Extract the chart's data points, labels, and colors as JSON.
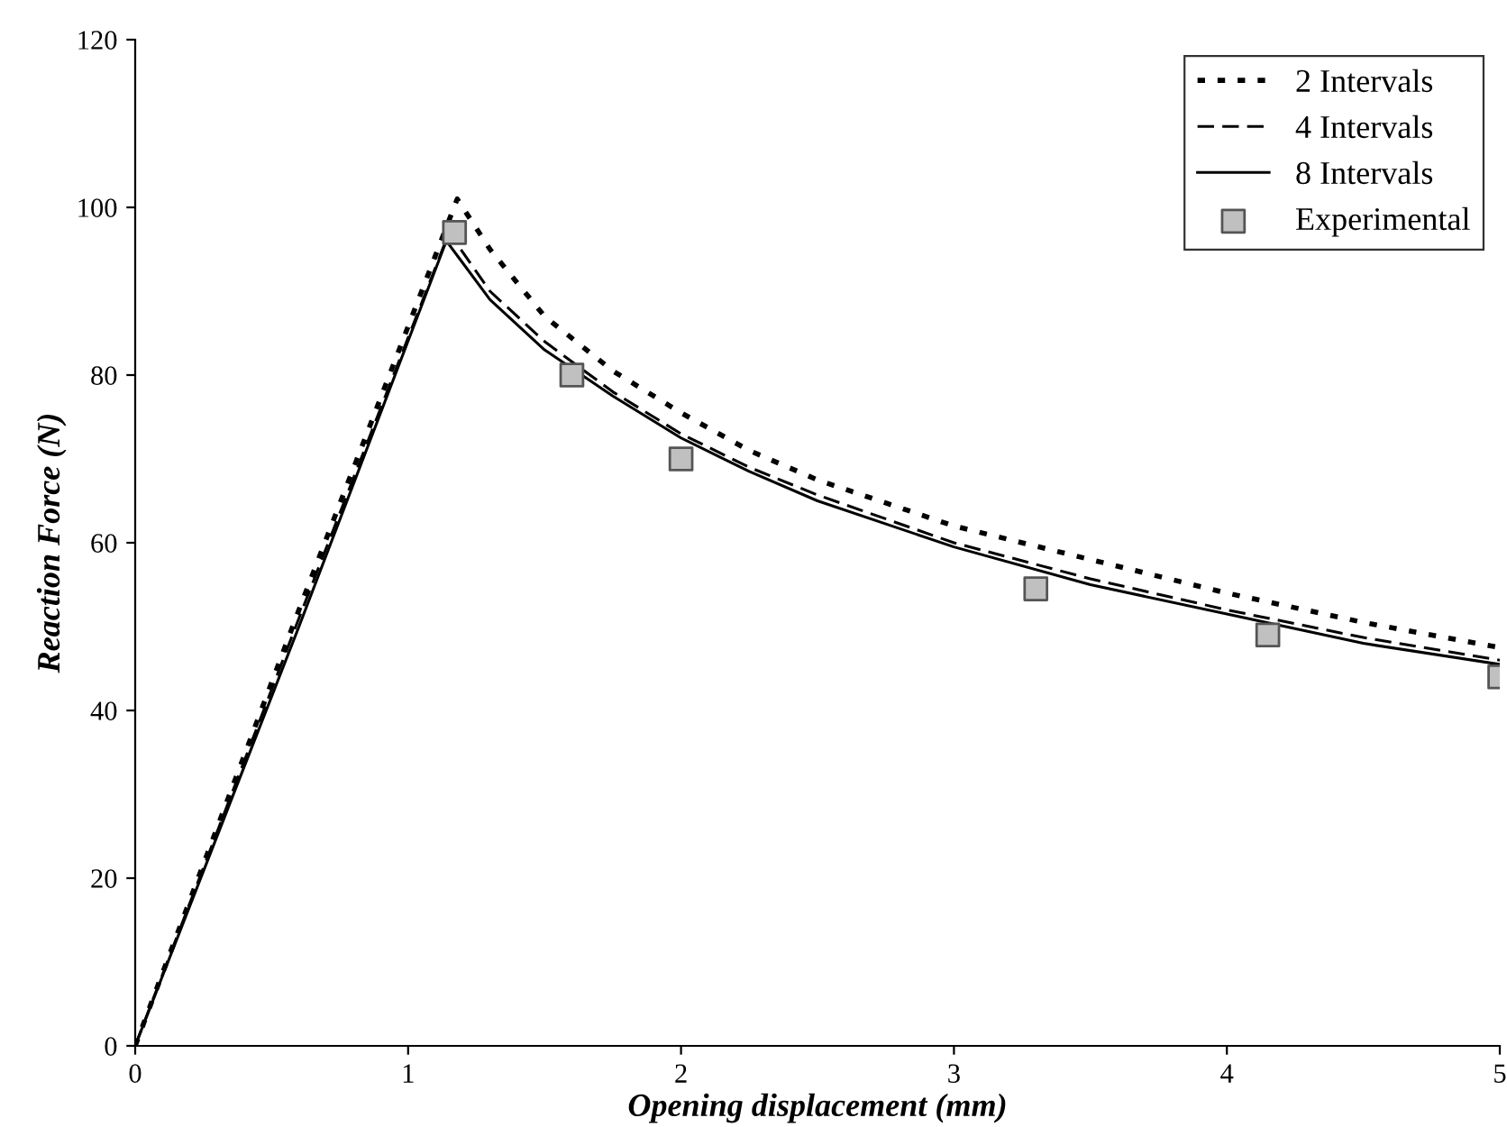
{
  "chart_data": {
    "type": "line",
    "xlabel": "Opening displacement (mm)",
    "ylabel": "Reaction Force (N)",
    "xlim": [
      0,
      5
    ],
    "ylim": [
      0,
      120
    ],
    "xticks": [
      0,
      1,
      2,
      3,
      4,
      5
    ],
    "yticks": [
      0,
      20,
      40,
      60,
      80,
      100,
      120
    ],
    "grid": false,
    "legend": "top right",
    "series": [
      {
        "name": "2 Intervals",
        "color": "#000000",
        "line_style": "dotted",
        "x": [
          0,
          0.6,
          1.18,
          1.3,
          1.5,
          1.75,
          2,
          2.25,
          2.5,
          3,
          3.5,
          4,
          4.5,
          5
        ],
        "values": [
          0,
          52,
          101,
          95,
          87,
          80.5,
          75.5,
          71,
          67.5,
          62,
          58,
          54,
          50.5,
          47.5
        ]
      },
      {
        "name": "4 Intervals",
        "color": "#000000",
        "line_style": "dashed",
        "x": [
          0,
          0.6,
          1.15,
          1.3,
          1.5,
          1.75,
          2,
          2.25,
          2.5,
          3,
          3.5,
          4,
          4.5,
          5
        ],
        "values": [
          0,
          51,
          97,
          90,
          84,
          78,
          73,
          69,
          65.7,
          60,
          55.7,
          52,
          48.7,
          46
        ]
      },
      {
        "name": "8 Intervals",
        "color": "#000000",
        "line_style": "solid",
        "x": [
          0,
          0.6,
          1.14,
          1.3,
          1.5,
          1.75,
          2,
          2.25,
          2.5,
          3,
          3.5,
          4,
          4.5,
          5
        ],
        "values": [
          0,
          50,
          96,
          89,
          83,
          77.5,
          72.5,
          68.5,
          65,
          59.5,
          55,
          51.5,
          48,
          45.5
        ]
      },
      {
        "name": "Experimental",
        "type": "scatter",
        "color": "#c0c0c0",
        "marker": "square",
        "x": [
          1.17,
          1.6,
          2.0,
          3.3,
          4.15,
          5.0
        ],
        "values": [
          97,
          80,
          70,
          54.5,
          49,
          44
        ]
      }
    ]
  }
}
